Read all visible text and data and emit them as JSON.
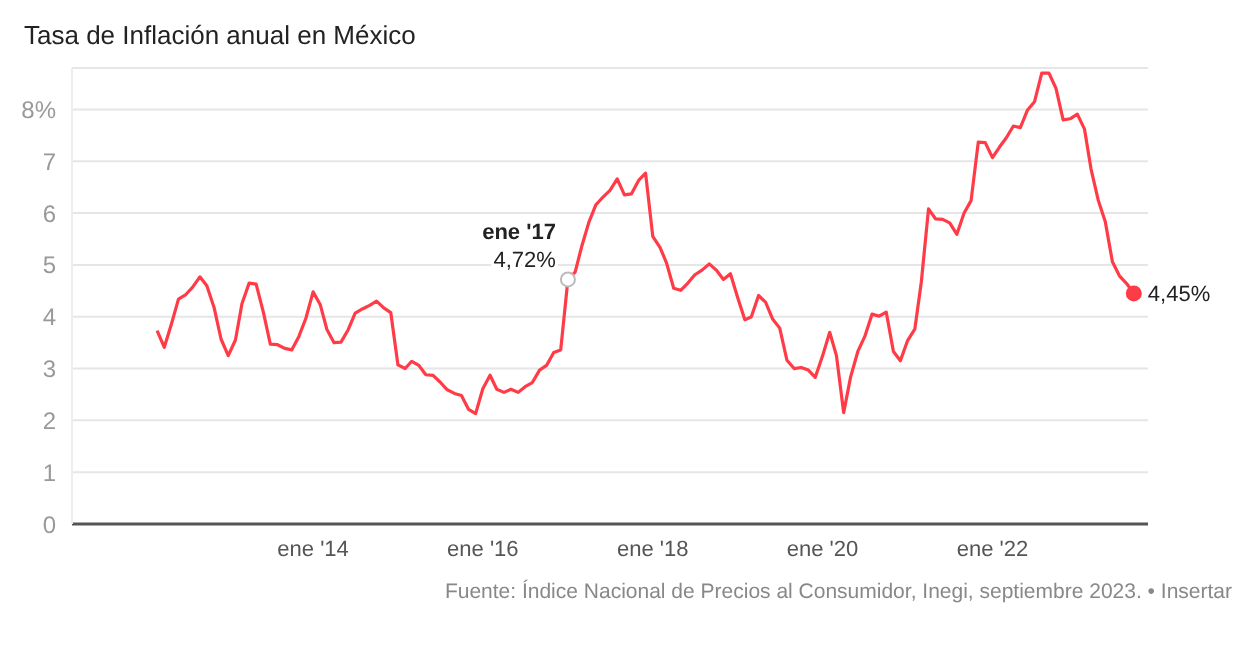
{
  "chart_data": {
    "type": "line",
    "title": "Tasa de Inflación anual en México",
    "x": [
      "2012-03",
      "2012-04",
      "2012-05",
      "2012-06",
      "2012-07",
      "2012-08",
      "2012-09",
      "2012-10",
      "2012-11",
      "2012-12",
      "2013-01",
      "2013-02",
      "2013-03",
      "2013-04",
      "2013-05",
      "2013-06",
      "2013-07",
      "2013-08",
      "2013-09",
      "2013-10",
      "2013-11",
      "2013-12",
      "2014-01",
      "2014-02",
      "2014-03",
      "2014-04",
      "2014-05",
      "2014-06",
      "2014-07",
      "2014-08",
      "2014-09",
      "2014-10",
      "2014-11",
      "2014-12",
      "2015-01",
      "2015-02",
      "2015-03",
      "2015-04",
      "2015-05",
      "2015-06",
      "2015-07",
      "2015-08",
      "2015-09",
      "2015-10",
      "2015-11",
      "2015-12",
      "2016-01",
      "2016-02",
      "2016-03",
      "2016-04",
      "2016-05",
      "2016-06",
      "2016-07",
      "2016-08",
      "2016-09",
      "2016-10",
      "2016-11",
      "2016-12",
      "2017-01",
      "2017-02",
      "2017-03",
      "2017-04",
      "2017-05",
      "2017-06",
      "2017-07",
      "2017-08",
      "2017-09",
      "2017-10",
      "2017-11",
      "2017-12",
      "2018-01",
      "2018-02",
      "2018-03",
      "2018-04",
      "2018-05",
      "2018-06",
      "2018-07",
      "2018-08",
      "2018-09",
      "2018-10",
      "2018-11",
      "2018-12",
      "2019-01",
      "2019-02",
      "2019-03",
      "2019-04",
      "2019-05",
      "2019-06",
      "2019-07",
      "2019-08",
      "2019-09",
      "2019-10",
      "2019-11",
      "2019-12",
      "2020-01",
      "2020-02",
      "2020-03",
      "2020-04",
      "2020-05",
      "2020-06",
      "2020-07",
      "2020-08",
      "2020-09",
      "2020-10",
      "2020-11",
      "2020-12",
      "2021-01",
      "2021-02",
      "2021-03",
      "2021-04",
      "2021-05",
      "2021-06",
      "2021-07",
      "2021-08",
      "2021-09",
      "2021-10",
      "2021-11",
      "2021-12",
      "2022-01",
      "2022-02",
      "2022-03",
      "2022-04",
      "2022-05",
      "2022-06",
      "2022-07",
      "2022-08",
      "2022-09",
      "2022-10",
      "2022-11",
      "2022-12",
      "2023-01",
      "2023-02",
      "2023-03",
      "2023-04",
      "2023-05",
      "2023-06",
      "2023-07",
      "2023-08",
      "2023-09"
    ],
    "series": [
      {
        "color": "#ff3b47",
        "values": [
          3.73,
          3.41,
          3.85,
          4.34,
          4.42,
          4.57,
          4.77,
          4.6,
          4.18,
          3.57,
          3.25,
          3.55,
          4.25,
          4.65,
          4.63,
          4.09,
          3.47,
          3.46,
          3.39,
          3.36,
          3.62,
          3.97,
          4.48,
          4.23,
          3.76,
          3.5,
          3.51,
          3.75,
          4.07,
          4.15,
          4.22,
          4.3,
          4.17,
          4.08,
          3.07,
          3,
          3.14,
          3.06,
          2.88,
          2.87,
          2.74,
          2.59,
          2.52,
          2.48,
          2.21,
          2.13,
          2.61,
          2.87,
          2.6,
          2.54,
          2.6,
          2.54,
          2.65,
          2.73,
          2.97,
          3.06,
          3.31,
          3.36,
          4.72,
          4.86,
          5.35,
          5.82,
          6.16,
          6.31,
          6.44,
          6.66,
          6.35,
          6.37,
          6.63,
          6.77,
          5.55,
          5.34,
          5.04,
          4.55,
          4.51,
          4.65,
          4.81,
          4.9,
          5.02,
          4.9,
          4.72,
          4.83,
          4.37,
          3.94,
          4,
          4.41,
          4.28,
          3.95,
          3.78,
          3.16,
          3,
          3.02,
          2.97,
          2.83,
          3.24,
          3.7,
          3.25,
          2.15,
          2.84,
          3.33,
          3.62,
          4.05,
          4.01,
          4.09,
          3.33,
          3.15,
          3.54,
          3.76,
          4.67,
          6.08,
          5.89,
          5.88,
          5.81,
          5.59,
          6,
          6.24,
          7.37,
          7.36,
          7.07,
          7.28,
          7.45,
          7.68,
          7.65,
          7.99,
          8.15,
          8.7,
          8.7,
          8.41,
          7.8,
          7.82,
          7.91,
          7.62,
          6.85,
          6.25,
          5.84,
          5.06,
          4.79,
          4.64,
          4.45
        ]
      }
    ],
    "xlim": [
      "2011-03",
      "2023-11"
    ],
    "xticks": [
      {
        "value": "2014-01",
        "label": "ene '14"
      },
      {
        "value": "2016-01",
        "label": "ene '16"
      },
      {
        "value": "2018-01",
        "label": "ene '18"
      },
      {
        "value": "2020-01",
        "label": "ene '20"
      },
      {
        "value": "2022-01",
        "label": "ene '22"
      }
    ],
    "ylim": [
      0,
      8.8
    ],
    "yticks": [
      0,
      1,
      2,
      3,
      4,
      5,
      6,
      7,
      {
        "value": 8,
        "label": "8%"
      }
    ],
    "grid": "y",
    "legend": false,
    "marker": "none",
    "line_style": "solid",
    "annotations": [
      {
        "text": "ene '17",
        "x": "2017-01",
        "y": 4.72
      },
      {
        "text": "4,72%",
        "x": "2017-01",
        "y": 4.72
      },
      {
        "text": "4,45%",
        "x": "2023-09",
        "y": 4.45
      },
      "Fuente: Índice Nacional de Precios al Consumidor, Inegi, septiembre 2023. • Insertar"
    ]
  }
}
